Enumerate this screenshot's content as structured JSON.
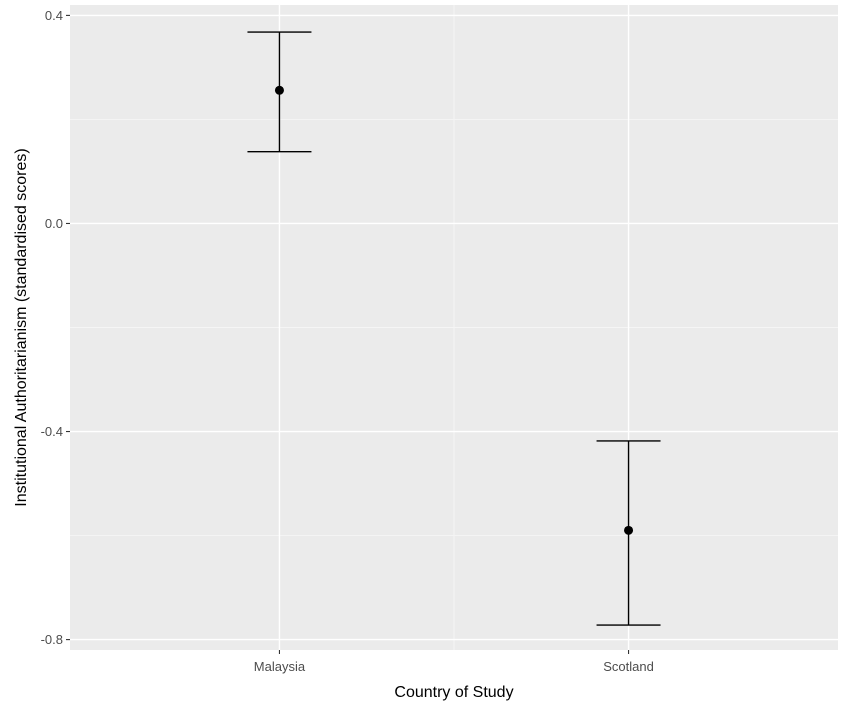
{
  "chart_data": {
    "type": "scatter",
    "subtype": "point-with-error-bars",
    "title": "",
    "xlabel": "Country of Study",
    "ylabel": "Institutional Authoritarianism (standardised scores)",
    "categories": [
      "Malaysia",
      "Scotland"
    ],
    "series": [
      {
        "values": [
          0.256,
          -0.59
        ],
        "error_lower": [
          0.138,
          -0.772
        ],
        "error_upper": [
          0.368,
          -0.418
        ]
      }
    ],
    "ylim": [
      -0.82,
      0.42
    ],
    "yticks": [
      -0.8,
      -0.4,
      0.0,
      0.4
    ],
    "ytick_labels": [
      "-0.8",
      "-0.4",
      "0.0",
      "0.4"
    ],
    "grid": true,
    "legend": "none",
    "colors": {
      "panel_background": "#ebebeb",
      "grid_major": "#ffffff",
      "grid_minor": "#f5f5f5",
      "marks": "#000000",
      "tick_text": "#4d4d4d",
      "axis_title": "#000000"
    }
  }
}
